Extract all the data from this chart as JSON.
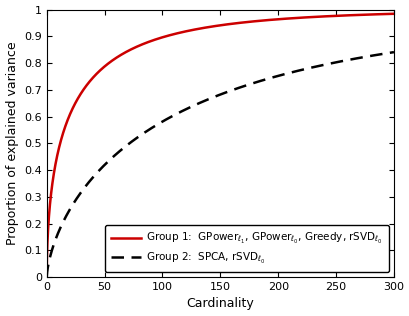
{
  "title": "",
  "xlabel": "Cardinality",
  "ylabel": "Proportion of explained variance",
  "xlim": [
    0,
    300
  ],
  "ylim": [
    0,
    1
  ],
  "xticks": [
    0,
    50,
    100,
    150,
    200,
    250,
    300
  ],
  "yticks": [
    0,
    0.1,
    0.2,
    0.3,
    0.4,
    0.5,
    0.6,
    0.7,
    0.8,
    0.9,
    1.0
  ],
  "group1_color": "#cc0000",
  "group2_color": "#000000",
  "group1_label": "Group 1:  GPower$_{\\ell_1}$, GPower$_{\\ell_0}$, Greedy, rSVD$_{\\ell_0}$",
  "group2_label": "Group 2:  SPCA, rSVD$_{\\ell_0}$",
  "group1_linewidth": 1.8,
  "group2_linewidth": 1.8,
  "bg_color": "#ffffff",
  "legend_fontsize": 7.5,
  "axis_fontsize": 9,
  "tick_fontsize": 8,
  "group1_k": 0.18,
  "group1_p": 0.55,
  "group2_k": 0.038,
  "group2_p": 0.68
}
